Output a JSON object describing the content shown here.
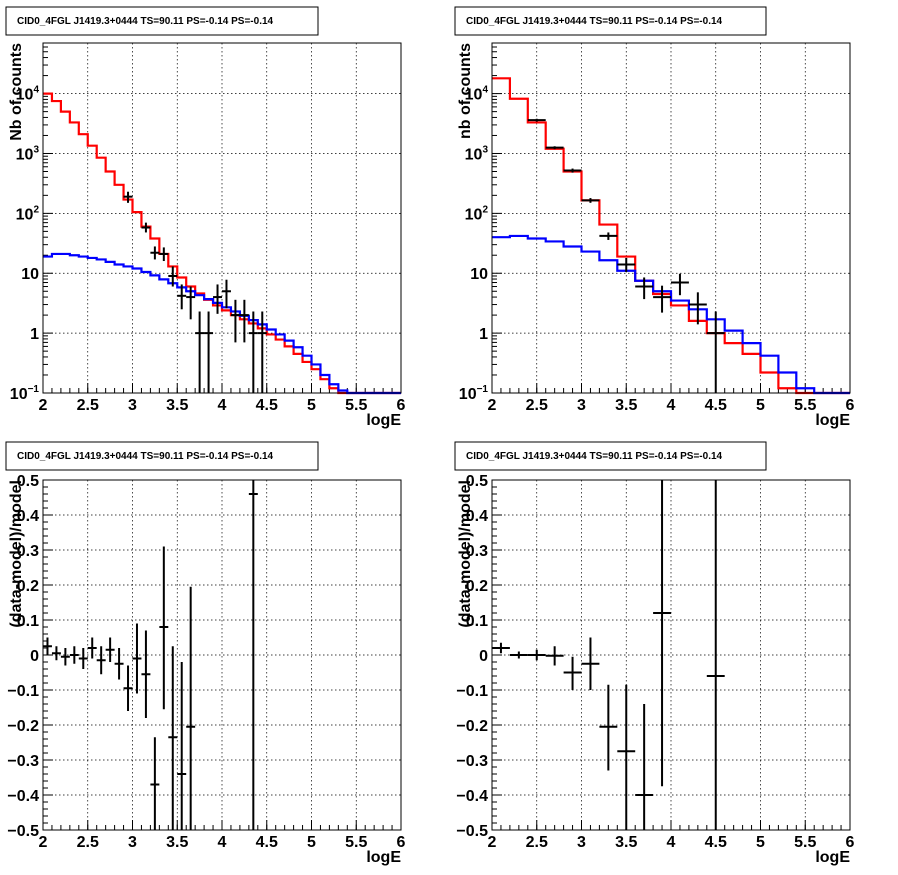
{
  "chart_data": [
    {
      "type": "line",
      "panel": "top-left",
      "title": "CID0_4FGL J1419.3+0444 TS=90.11 PS=-0.14 PS=-0.14",
      "xlabel": "logE",
      "ylabel": "Nb of counts",
      "xlim": [
        2,
        6
      ],
      "ylim": [
        0.1,
        70000
      ],
      "log_y": true,
      "grid": true,
      "x_ticks": [
        "2",
        "2.5",
        "3",
        "3.5",
        "4",
        "4.5",
        "5",
        "5.5",
        "6"
      ],
      "y_ticks": [
        {
          "base": "10",
          "exp": "−1",
          "value": 0.1
        },
        {
          "base": "1",
          "exp": "",
          "value": 1
        },
        {
          "base": "10",
          "exp": "",
          "value": 10
        },
        {
          "base": "10",
          "exp": "2",
          "value": 100
        },
        {
          "base": "10",
          "exp": "3",
          "value": 1000
        },
        {
          "base": "10",
          "exp": "4",
          "value": 10000
        }
      ],
      "series": [
        {
          "color": "#ff0000",
          "step": true,
          "bin_width": 0.1,
          "x": [
            2.0,
            2.1,
            2.2,
            2.3,
            2.4,
            2.5,
            2.6,
            2.7,
            2.8,
            2.9,
            3.0,
            3.1,
            3.2,
            3.3,
            3.4,
            3.5,
            3.6,
            3.7,
            3.8,
            3.9,
            4.0,
            4.1,
            4.2,
            4.3,
            4.4,
            4.5,
            4.6,
            4.7,
            4.8,
            4.9,
            5.0,
            5.1,
            5.2,
            5.3,
            5.4,
            5.5,
            5.6,
            5.7,
            5.8,
            5.9
          ],
          "y": [
            10000,
            7500,
            5000,
            3300,
            2100,
            1350,
            850,
            500,
            300,
            170,
            105,
            60,
            38,
            21,
            13,
            8.5,
            6.0,
            4.6,
            3.6,
            2.9,
            2.4,
            2.0,
            1.7,
            1.45,
            1.2,
            0.95,
            0.78,
            0.6,
            0.45,
            0.33,
            0.25,
            0.17,
            0.12,
            0.1,
            0.1,
            0.1,
            0.1,
            0.1,
            0.1,
            0.1
          ]
        },
        {
          "color": "#0000ff",
          "step": true,
          "bin_width": 0.1,
          "x": [
            2.0,
            2.1,
            2.2,
            2.3,
            2.4,
            2.5,
            2.6,
            2.7,
            2.8,
            2.9,
            3.0,
            3.1,
            3.2,
            3.3,
            3.4,
            3.5,
            3.6,
            3.7,
            3.8,
            3.9,
            4.0,
            4.1,
            4.2,
            4.3,
            4.4,
            4.5,
            4.6,
            4.7,
            4.8,
            4.9,
            5.0,
            5.1,
            5.2,
            5.3,
            5.4,
            5.5,
            5.6,
            5.7,
            5.8,
            5.9
          ],
          "y": [
            19,
            21,
            21,
            20,
            19,
            18,
            17,
            15.5,
            14,
            13,
            12,
            10.5,
            9.2,
            7.9,
            6.8,
            5.8,
            5.0,
            4.3,
            3.7,
            3.2,
            2.7,
            2.3,
            1.95,
            1.65,
            1.4,
            1.15,
            0.95,
            0.75,
            0.58,
            0.42,
            0.3,
            0.2,
            0.14,
            0.11,
            0.1,
            0.1,
            0.1,
            0.1,
            0.1,
            0.1
          ]
        }
      ],
      "points": [
        {
          "x": 2.95,
          "y": 190,
          "xerr": 0.05,
          "ylo": 150,
          "yhi": 230
        },
        {
          "x": 3.15,
          "y": 58,
          "xerr": 0.05,
          "ylo": 48,
          "yhi": 70
        },
        {
          "x": 3.25,
          "y": 22,
          "xerr": 0.05,
          "ylo": 17,
          "yhi": 28
        },
        {
          "x": 3.35,
          "y": 21,
          "xerr": 0.05,
          "ylo": 16,
          "yhi": 27
        },
        {
          "x": 3.45,
          "y": 9,
          "xerr": 0.05,
          "ylo": 6,
          "yhi": 13
        },
        {
          "x": 3.55,
          "y": 4.2,
          "xerr": 0.05,
          "ylo": 2.5,
          "yhi": 6.5
        },
        {
          "x": 3.65,
          "y": 4.0,
          "xerr": 0.05,
          "ylo": 1.7,
          "yhi": 6.0
        },
        {
          "x": 3.75,
          "y": 1,
          "xerr": 0.05,
          "ylo": 0.1,
          "yhi": 2.3
        },
        {
          "x": 3.85,
          "y": 1,
          "xerr": 0.05,
          "ylo": 0.1,
          "yhi": 2.3
        },
        {
          "x": 3.95,
          "y": 4.0,
          "xerr": 0.05,
          "ylo": 2.1,
          "yhi": 6.5
        },
        {
          "x": 4.05,
          "y": 5.0,
          "xerr": 0.05,
          "ylo": 2.6,
          "yhi": 7.8
        },
        {
          "x": 4.15,
          "y": 2,
          "xerr": 0.05,
          "ylo": 0.7,
          "yhi": 3.6
        },
        {
          "x": 4.25,
          "y": 2,
          "xerr": 0.05,
          "ylo": 0.7,
          "yhi": 3.6
        },
        {
          "x": 4.35,
          "y": 1,
          "xerr": 0.05,
          "ylo": 0.1,
          "yhi": 2.3
        },
        {
          "x": 4.45,
          "y": 1,
          "xerr": 0.05,
          "ylo": 0.1,
          "yhi": 2.3
        }
      ]
    },
    {
      "type": "line",
      "panel": "top-right",
      "title": "CID0_4FGL J1419.3+0444 TS=90.11 PS=-0.14 PS=-0.14",
      "xlabel": "logE",
      "ylabel": "nb of counts",
      "xlim": [
        2,
        6
      ],
      "ylim": [
        0.1,
        70000
      ],
      "log_y": true,
      "grid": true,
      "x_ticks": [
        "2",
        "2.5",
        "3",
        "3.5",
        "4",
        "4.5",
        "5",
        "5.5",
        "6"
      ],
      "y_ticks": [
        {
          "base": "10",
          "exp": "−1",
          "value": 0.1
        },
        {
          "base": "1",
          "exp": "",
          "value": 1
        },
        {
          "base": "10",
          "exp": "",
          "value": 10
        },
        {
          "base": "10",
          "exp": "2",
          "value": 100
        },
        {
          "base": "10",
          "exp": "3",
          "value": 1000
        },
        {
          "base": "10",
          "exp": "4",
          "value": 10000
        }
      ],
      "series": [
        {
          "color": "#ff0000",
          "step": true,
          "bin_width": 0.2,
          "x": [
            2.0,
            2.2,
            2.4,
            2.6,
            2.8,
            3.0,
            3.2,
            3.4,
            3.6,
            3.8,
            4.0,
            4.2,
            4.4,
            4.6,
            4.8,
            5.0,
            5.2,
            5.4,
            5.6,
            5.8
          ],
          "y": [
            18000,
            8200,
            3300,
            1200,
            500,
            165,
            65,
            19,
            7.5,
            4.5,
            2.9,
            1.6,
            1.0,
            0.68,
            0.45,
            0.22,
            0.12,
            0.1,
            0.1,
            0.1
          ]
        },
        {
          "color": "#0000ff",
          "step": true,
          "bin_width": 0.2,
          "x": [
            2.0,
            2.2,
            2.4,
            2.6,
            2.8,
            3.0,
            3.2,
            3.4,
            3.6,
            3.8,
            4.0,
            4.2,
            4.4,
            4.6,
            4.8,
            5.0,
            5.2,
            5.4,
            5.6,
            5.8
          ],
          "y": [
            40,
            42,
            38,
            34,
            28,
            23,
            16.5,
            11,
            7.5,
            5.0,
            3.5,
            2.5,
            1.7,
            1.1,
            0.68,
            0.42,
            0.22,
            0.12,
            0.1,
            0.1
          ]
        }
      ],
      "points": [
        {
          "x": 2.5,
          "y": 3600,
          "xerr": 0.1,
          "ylo": 3400,
          "yhi": 3800
        },
        {
          "x": 2.7,
          "y": 1250,
          "xerr": 0.1,
          "ylo": 1180,
          "yhi": 1320
        },
        {
          "x": 2.9,
          "y": 520,
          "xerr": 0.1,
          "ylo": 480,
          "yhi": 560
        },
        {
          "x": 3.1,
          "y": 165,
          "xerr": 0.1,
          "ylo": 150,
          "yhi": 180
        },
        {
          "x": 3.3,
          "y": 42,
          "xerr": 0.1,
          "ylo": 36,
          "yhi": 48
        },
        {
          "x": 3.5,
          "y": 14,
          "xerr": 0.1,
          "ylo": 10.5,
          "yhi": 18
        },
        {
          "x": 3.7,
          "y": 6,
          "xerr": 0.1,
          "ylo": 3.7,
          "yhi": 8.5
        },
        {
          "x": 3.9,
          "y": 4,
          "xerr": 0.1,
          "ylo": 2.2,
          "yhi": 6.2
        },
        {
          "x": 4.1,
          "y": 7,
          "xerr": 0.1,
          "ylo": 4.3,
          "yhi": 9.8
        },
        {
          "x": 4.3,
          "y": 3,
          "xerr": 0.1,
          "ylo": 1.4,
          "yhi": 4.8
        },
        {
          "x": 4.5,
          "y": 1,
          "xerr": 0.1,
          "ylo": 0.1,
          "yhi": 2.3
        }
      ]
    },
    {
      "type": "scatter",
      "panel": "bottom-left",
      "title": "CID0_4FGL J1419.3+0444 TS=90.11 PS=-0.14 PS=-0.14",
      "xlabel": "logE",
      "ylabel": "(data-model)/model",
      "xlim": [
        2,
        6
      ],
      "ylim": [
        -0.5,
        0.5
      ],
      "grid": true,
      "x_ticks": [
        "2",
        "2.5",
        "3",
        "3.5",
        "4",
        "4.5",
        "5",
        "5.5",
        "6"
      ],
      "y_ticks": [
        "−0.5",
        "−0.4",
        "−0.3",
        "−0.2",
        "−0.1",
        "0",
        "0.1",
        "0.2",
        "0.3",
        "0.4",
        "0.5"
      ],
      "points": [
        {
          "x": 2.05,
          "y": 0.025,
          "xerr": 0.05,
          "ylo": 0.0,
          "yhi": 0.05
        },
        {
          "x": 2.15,
          "y": 0.005,
          "xerr": 0.05,
          "ylo": -0.015,
          "yhi": 0.025
        },
        {
          "x": 2.25,
          "y": -0.005,
          "xerr": 0.05,
          "ylo": -0.03,
          "yhi": 0.02
        },
        {
          "x": 2.35,
          "y": 0.0,
          "xerr": 0.05,
          "ylo": -0.025,
          "yhi": 0.025
        },
        {
          "x": 2.45,
          "y": -0.01,
          "xerr": 0.05,
          "ylo": -0.04,
          "yhi": 0.02
        },
        {
          "x": 2.55,
          "y": 0.02,
          "xerr": 0.05,
          "ylo": -0.01,
          "yhi": 0.05
        },
        {
          "x": 2.65,
          "y": -0.015,
          "xerr": 0.05,
          "ylo": -0.055,
          "yhi": 0.025
        },
        {
          "x": 2.75,
          "y": 0.015,
          "xerr": 0.05,
          "ylo": -0.02,
          "yhi": 0.05
        },
        {
          "x": 2.85,
          "y": -0.025,
          "xerr": 0.05,
          "ylo": -0.07,
          "yhi": 0.02
        },
        {
          "x": 2.95,
          "y": -0.095,
          "xerr": 0.05,
          "ylo": -0.16,
          "yhi": -0.03
        },
        {
          "x": 3.05,
          "y": -0.01,
          "xerr": 0.05,
          "ylo": -0.11,
          "yhi": 0.09
        },
        {
          "x": 3.15,
          "y": -0.055,
          "xerr": 0.05,
          "ylo": -0.18,
          "yhi": 0.07
        },
        {
          "x": 3.25,
          "y": -0.37,
          "xerr": 0.05,
          "ylo": -0.5,
          "yhi": -0.235
        },
        {
          "x": 3.35,
          "y": 0.08,
          "xerr": 0.05,
          "ylo": -0.155,
          "yhi": 0.31
        },
        {
          "x": 3.45,
          "y": -0.235,
          "xerr": 0.05,
          "ylo": -0.5,
          "yhi": 0.025
        },
        {
          "x": 3.55,
          "y": -0.34,
          "xerr": 0.05,
          "ylo": -0.5,
          "yhi": -0.02
        },
        {
          "x": 3.65,
          "y": -0.205,
          "xerr": 0.05,
          "ylo": -0.5,
          "yhi": 0.195
        },
        {
          "x": 4.35,
          "y": 0.46,
          "xerr": 0.05,
          "ylo": -0.5,
          "yhi": 0.5
        }
      ]
    },
    {
      "type": "scatter",
      "panel": "bottom-right",
      "title": "CID0_4FGL J1419.3+0444 TS=90.11 PS=-0.14 PS=-0.14",
      "xlabel": "logE",
      "ylabel": "(data-model)/model",
      "xlim": [
        2,
        6
      ],
      "ylim": [
        -0.5,
        0.5
      ],
      "grid": true,
      "x_ticks": [
        "2",
        "2.5",
        "3",
        "3.5",
        "4",
        "4.5",
        "5",
        "5.5",
        "6"
      ],
      "y_ticks": [
        "−0.5",
        "−0.4",
        "−0.3",
        "−0.2",
        "−0.1",
        "0",
        "0.1",
        "0.2",
        "0.3",
        "0.4",
        "0.5"
      ],
      "points": [
        {
          "x": 2.1,
          "y": 0.02,
          "xerr": 0.1,
          "ylo": 0.005,
          "yhi": 0.035
        },
        {
          "x": 2.3,
          "y": 0.0,
          "xerr": 0.1,
          "ylo": -0.01,
          "yhi": 0.01
        },
        {
          "x": 2.5,
          "y": 0.0,
          "xerr": 0.1,
          "ylo": -0.015,
          "yhi": 0.015
        },
        {
          "x": 2.7,
          "y": -0.002,
          "xerr": 0.1,
          "ylo": -0.03,
          "yhi": 0.025
        },
        {
          "x": 2.9,
          "y": -0.05,
          "xerr": 0.1,
          "ylo": -0.1,
          "yhi": -0.005
        },
        {
          "x": 3.1,
          "y": -0.025,
          "xerr": 0.1,
          "ylo": -0.1,
          "yhi": 0.05
        },
        {
          "x": 3.3,
          "y": -0.205,
          "xerr": 0.1,
          "ylo": -0.33,
          "yhi": -0.085
        },
        {
          "x": 3.5,
          "y": -0.275,
          "xerr": 0.1,
          "ylo": -0.5,
          "yhi": -0.085
        },
        {
          "x": 3.7,
          "y": -0.4,
          "xerr": 0.1,
          "ylo": -0.5,
          "yhi": -0.14
        },
        {
          "x": 3.9,
          "y": 0.12,
          "xerr": 0.1,
          "ylo": -0.375,
          "yhi": 0.5
        },
        {
          "x": 4.5,
          "y": -0.06,
          "xerr": 0.1,
          "ylo": -0.5,
          "yhi": 0.5
        }
      ]
    }
  ]
}
